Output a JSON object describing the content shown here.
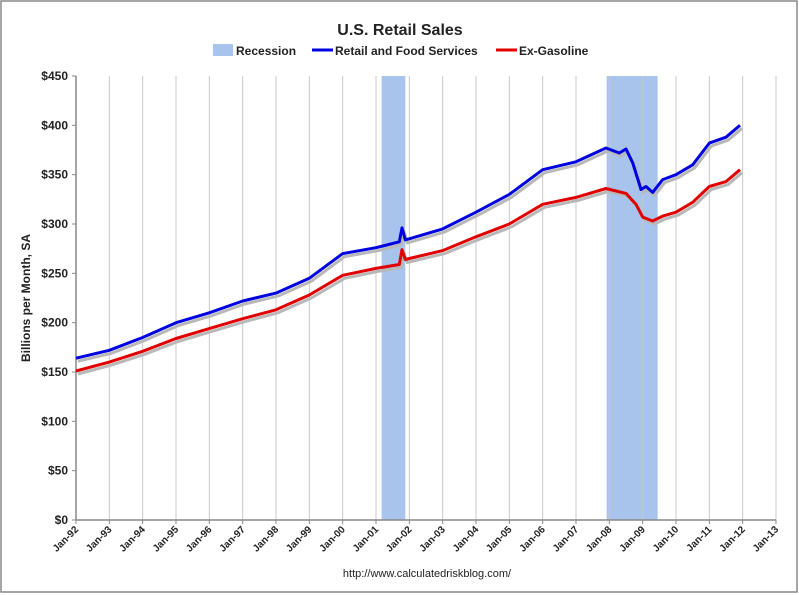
{
  "chart_data": {
    "type": "line",
    "title": "U.S. Retail Sales",
    "ylabel": "Billions per Month, SA",
    "xlabel": "",
    "source": "http://www.calculatedriskblog.com/",
    "ylim": [
      0,
      450
    ],
    "xlim": [
      1992,
      2013
    ],
    "yticks": [
      0,
      50,
      100,
      150,
      200,
      250,
      300,
      350,
      400,
      450
    ],
    "ytick_labels": [
      "$0",
      "$50",
      "$100",
      "$150",
      "$200",
      "$250",
      "$300",
      "$350",
      "$400",
      "$450"
    ],
    "xtick_labels": [
      "Jan-92",
      "Jan-93",
      "Jan-94",
      "Jan-95",
      "Jan-96",
      "Jan-97",
      "Jan-98",
      "Jan-99",
      "Jan-00",
      "Jan-01",
      "Jan-02",
      "Jan-03",
      "Jan-04",
      "Jan-05",
      "Jan-06",
      "Jan-07",
      "Jan-08",
      "Jan-09",
      "Jan-10",
      "Jan-11",
      "Jan-12",
      "Jan-13"
    ],
    "grid": "vertical",
    "legend": "top",
    "legend_labels": {
      "recession": "Recession"
    },
    "recessions": [
      [
        2001.17,
        2001.88
      ],
      [
        2007.92,
        2009.45
      ]
    ],
    "recession_color": "#a9c4ec",
    "series": [
      {
        "name": "Retail and Food Services",
        "color": "#0000e0",
        "x": [
          1992.0,
          1993.0,
          1994.0,
          1995.0,
          1996.0,
          1997.0,
          1998.0,
          1999.0,
          2000.0,
          2001.0,
          2001.7,
          2001.78,
          2001.88,
          2002.0,
          2003.0,
          2004.0,
          2005.0,
          2006.0,
          2007.0,
          2007.9,
          2008.3,
          2008.5,
          2008.7,
          2008.95,
          2009.1,
          2009.3,
          2009.6,
          2010.0,
          2010.5,
          2011.0,
          2011.5,
          2011.92
        ],
        "values": [
          164,
          172,
          185,
          200,
          210,
          222,
          230,
          245,
          270,
          276,
          282,
          296,
          284,
          285,
          295,
          312,
          330,
          355,
          363,
          377,
          372,
          376,
          362,
          335,
          338,
          332,
          345,
          350,
          360,
          382,
          388,
          400
        ]
      },
      {
        "name": "Ex-Gasoline",
        "color": "#e00000",
        "x": [
          1992.0,
          1993.0,
          1994.0,
          1995.0,
          1996.0,
          1997.0,
          1998.0,
          1999.0,
          2000.0,
          2001.0,
          2001.7,
          2001.78,
          2001.88,
          2002.0,
          2003.0,
          2004.0,
          2005.0,
          2006.0,
          2007.0,
          2007.9,
          2008.5,
          2008.8,
          2009.0,
          2009.3,
          2009.6,
          2010.0,
          2010.5,
          2011.0,
          2011.5,
          2011.92
        ],
        "values": [
          151,
          160,
          171,
          184,
          194,
          204,
          213,
          228,
          248,
          255,
          259,
          274,
          264,
          265,
          273,
          287,
          300,
          320,
          327,
          336,
          331,
          320,
          307,
          303,
          308,
          312,
          322,
          338,
          343,
          355
        ]
      }
    ]
  }
}
